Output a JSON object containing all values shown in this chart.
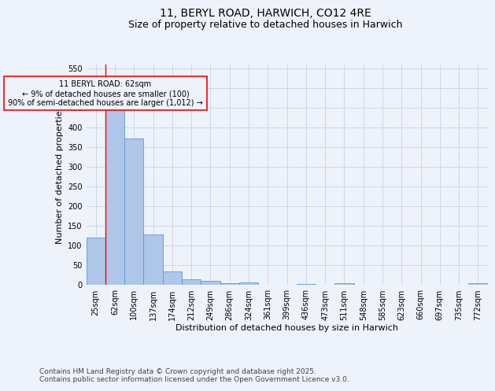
{
  "title": "11, BERYL ROAD, HARWICH, CO12 4RE",
  "subtitle": "Size of property relative to detached houses in Harwich",
  "xlabel": "Distribution of detached houses by size in Harwich",
  "ylabel": "Number of detached properties",
  "categories": [
    "25sqm",
    "62sqm",
    "100sqm",
    "137sqm",
    "174sqm",
    "212sqm",
    "249sqm",
    "286sqm",
    "324sqm",
    "361sqm",
    "399sqm",
    "436sqm",
    "473sqm",
    "511sqm",
    "548sqm",
    "585sqm",
    "623sqm",
    "660sqm",
    "697sqm",
    "735sqm",
    "772sqm"
  ],
  "values": [
    120,
    457,
    373,
    128,
    35,
    15,
    10,
    5,
    6,
    0,
    0,
    3,
    0,
    5,
    0,
    0,
    0,
    0,
    0,
    0,
    5
  ],
  "bar_color": "#aec6e8",
  "bar_edge_color": "#5b9bd5",
  "highlight_line_index": 1,
  "annotation_text": "11 BERYL ROAD: 62sqm\n← 9% of detached houses are smaller (100)\n90% of semi-detached houses are larger (1,012) →",
  "annotation_box_color": "#ff0000",
  "ylim": [
    0,
    560
  ],
  "yticks": [
    0,
    50,
    100,
    150,
    200,
    250,
    300,
    350,
    400,
    450,
    500,
    550
  ],
  "footer_line1": "Contains HM Land Registry data © Crown copyright and database right 2025.",
  "footer_line2": "Contains public sector information licensed under the Open Government Licence v3.0.",
  "bg_color": "#eef2fa",
  "grid_color": "#c8d4e8",
  "title_fontsize": 10,
  "subtitle_fontsize": 9,
  "axis_label_fontsize": 8,
  "tick_fontsize": 7,
  "annotation_fontsize": 7,
  "footer_fontsize": 6.5
}
